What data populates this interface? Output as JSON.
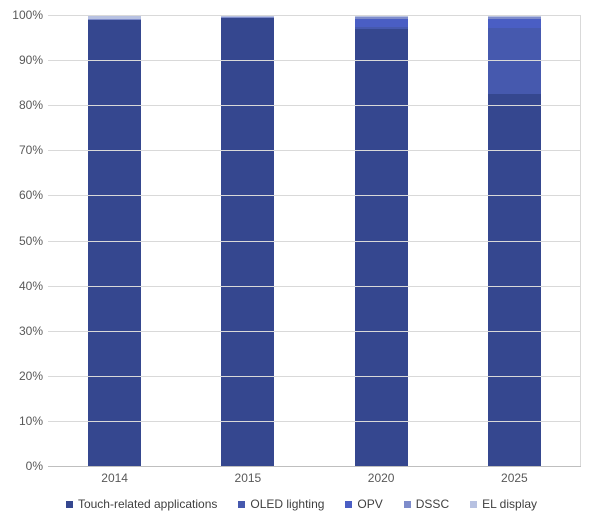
{
  "chart_data": {
    "type": "bar",
    "variant": "stacked-100-percent-column",
    "title": "",
    "xlabel": "",
    "ylabel": "",
    "categories": [
      "2014",
      "2015",
      "2020",
      "2025"
    ],
    "series": [
      {
        "name": "Touch-related applications",
        "color": "#35478F",
        "values": [
          99.0,
          99.3,
          97.0,
          82.5
        ]
      },
      {
        "name": "OLED lighting",
        "color": "#4659AE",
        "values": [
          0.0,
          0.0,
          0.3,
          14.7
        ]
      },
      {
        "name": "OPV",
        "color": "#4A5EC4",
        "values": [
          0.0,
          0.1,
          1.9,
          2.0
        ]
      },
      {
        "name": "DSSC",
        "color": "#7E8CCB",
        "values": [
          0.2,
          0.2,
          0.3,
          0.3
        ]
      },
      {
        "name": "EL display",
        "color": "#B7C1E1",
        "values": [
          0.8,
          0.4,
          0.5,
          0.5
        ]
      }
    ],
    "ylim": [
      0,
      100
    ],
    "y_ticks": [
      {
        "value": 100,
        "label": "100%"
      },
      {
        "value": 90,
        "label": "90%"
      },
      {
        "value": 80,
        "label": "80%"
      },
      {
        "value": 70,
        "label": "70%"
      },
      {
        "value": 60,
        "label": "60%"
      },
      {
        "value": 50,
        "label": "50%"
      },
      {
        "value": 40,
        "label": "40%"
      },
      {
        "value": 30,
        "label": "30%"
      },
      {
        "value": 20,
        "label": "20%"
      },
      {
        "value": 10,
        "label": "10%"
      },
      {
        "value": 0,
        "label": "0%"
      }
    ],
    "grid": true,
    "legend_position": "bottom"
  },
  "style_colors": {
    "background": "#FFFFFF",
    "gridline": "#D9D9D9",
    "axis_line": "#BFBFBF",
    "right_border": "#D9D9D9",
    "tick_text": "#595959",
    "category_text": "#595959",
    "legend_text": "#404040"
  }
}
